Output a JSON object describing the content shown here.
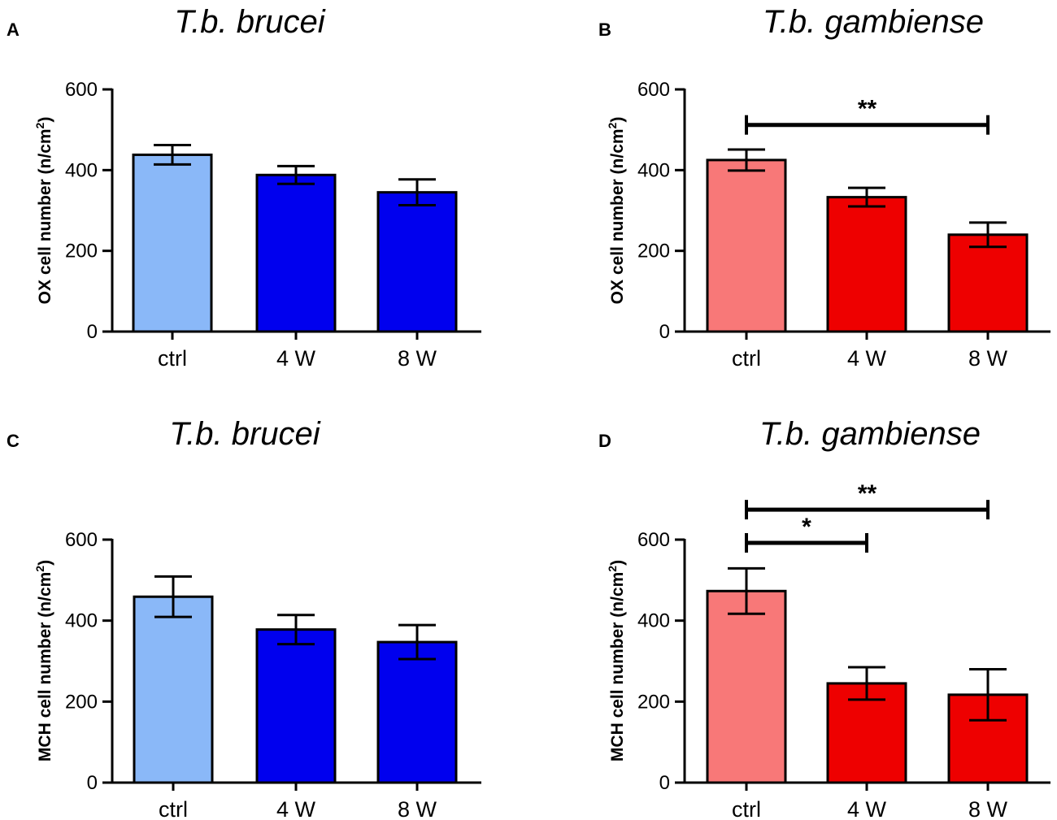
{
  "colors": {
    "brucei_ctrl": "#8ab8f8",
    "brucei_infected": "#0000ee",
    "gambiense_ctrl": "#f87878",
    "gambiense_infected": "#ee0000",
    "stroke": "#000000"
  },
  "chart_data": [
    {
      "panel": "A",
      "title": "T.b. brucei",
      "type": "bar",
      "ylabel": "OX cell number (n/cm",
      "ylabel_sup": "2",
      "ylabel_end": ")",
      "yticks": [
        "0",
        "200",
        "400",
        "600"
      ],
      "ylim": [
        0,
        600
      ],
      "categories": [
        "ctrl",
        "4 W",
        "8 W"
      ],
      "values": [
        438,
        388,
        345
      ],
      "errors": [
        24,
        22,
        32
      ],
      "bar_colors": [
        "#8ab8f8",
        "#0000ee",
        "#0000ee"
      ],
      "significance": []
    },
    {
      "panel": "B",
      "title": "T.b. gambiense",
      "type": "bar",
      "ylabel": "OX cell number (n/cm",
      "ylabel_sup": "2",
      "ylabel_end": ")",
      "yticks": [
        "0",
        "200",
        "400",
        "600"
      ],
      "ylim": [
        0,
        600
      ],
      "categories": [
        "ctrl",
        "4 W",
        "8 W"
      ],
      "values": [
        425,
        333,
        240
      ],
      "errors": [
        26,
        23,
        30
      ],
      "bar_colors": [
        "#f87878",
        "#ee0000",
        "#ee0000"
      ],
      "significance": [
        {
          "from": 0,
          "to": 2,
          "label": "**",
          "level": 512
        }
      ]
    },
    {
      "panel": "C",
      "title": "T.b. brucei",
      "type": "bar",
      "ylabel": "MCH cell number (n/cm",
      "ylabel_sup": "2",
      "ylabel_end": ")",
      "yticks": [
        "0",
        "200",
        "400",
        "600"
      ],
      "ylim": [
        0,
        600
      ],
      "categories": [
        "ctrl",
        "4 W",
        "8 W"
      ],
      "values": [
        459,
        378,
        347
      ],
      "errors": [
        50,
        36,
        42
      ],
      "bar_colors": [
        "#8ab8f8",
        "#0000ee",
        "#0000ee"
      ],
      "significance": []
    },
    {
      "panel": "D",
      "title": "T.b. gambiense",
      "type": "bar",
      "ylabel": "MCH cell number (n/cm",
      "ylabel_sup": "2",
      "ylabel_end": ")",
      "yticks": [
        "0",
        "200",
        "400",
        "600"
      ],
      "ylim": [
        0,
        600
      ],
      "categories": [
        "ctrl",
        "4 W",
        "8 W"
      ],
      "values": [
        473,
        245,
        217
      ],
      "errors": [
        56,
        40,
        63
      ],
      "bar_colors": [
        "#f87878",
        "#ee0000",
        "#ee0000"
      ],
      "significance": [
        {
          "from": 0,
          "to": 2,
          "label": "**",
          "level": 674
        },
        {
          "from": 0,
          "to": 1,
          "label": "*",
          "level": 592
        }
      ]
    }
  ]
}
